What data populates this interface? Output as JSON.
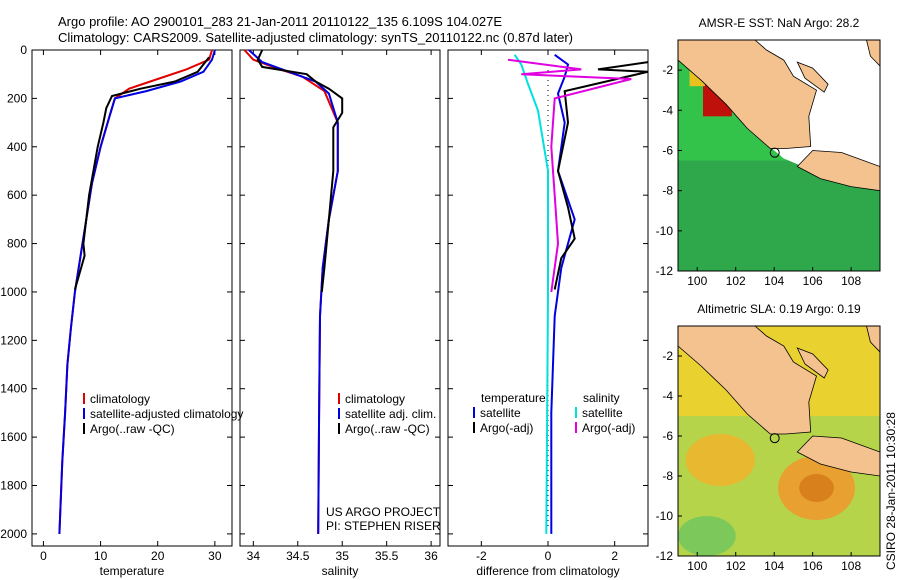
{
  "title_line1": "Argo profile: AO 2900101_283 21-Jan-2011 20110122_135 6.109S 104.027E",
  "title_line2": "Climatology: CARS2009. Satellite-adjusted climatology: synTS_20110122.nc (0.87d later)",
  "credit": "CSIRO 28-Jan-2011 10:30:28",
  "colors": {
    "climatology": "#e00000",
    "satellite": "#0000e0",
    "argo": "#000000",
    "salinity_sat": "#00e0e0",
    "salinity_argo": "#e000e0",
    "sea_green": "#2fbf3a",
    "land": "#f4c28f",
    "sla_bg": "#a8d04a"
  },
  "chart_data": [
    {
      "type": "line",
      "xlabel": "temperature",
      "ylim": [
        0,
        2050
      ],
      "yticks": [
        0,
        200,
        400,
        600,
        800,
        1000,
        1200,
        1400,
        1600,
        1800,
        2000
      ],
      "xlim": [
        -2,
        33
      ],
      "xticks": [
        0,
        10,
        20,
        30
      ],
      "legend": {
        "position": "lower-right",
        "entries": [
          "climatology",
          "satellite-adjusted climatology",
          "Argo(..raw -QC)"
        ]
      },
      "series": [
        {
          "name": "climatology",
          "color": "#e00000",
          "points": [
            [
              29.5,
              0
            ],
            [
              29.0,
              40
            ],
            [
              25,
              80
            ],
            [
              20,
              120
            ],
            [
              15,
              160
            ],
            [
              12.5,
              200
            ],
            [
              11.5,
              280
            ],
            [
              10,
              400
            ],
            [
              8.5,
              550
            ],
            [
              7.5,
              700
            ],
            [
              6.5,
              850
            ],
            [
              5.5,
              1000
            ],
            [
              4.8,
              1150
            ],
            [
              4.2,
              1300
            ],
            [
              3.8,
              1500
            ],
            [
              3.3,
              1700
            ],
            [
              2.8,
              2000
            ]
          ]
        },
        {
          "name": "satellite-adjusted climatology",
          "color": "#0000e0",
          "points": [
            [
              30,
              0
            ],
            [
              29.5,
              40
            ],
            [
              28,
              90
            ],
            [
              24,
              130
            ],
            [
              18,
              170
            ],
            [
              12.5,
              200
            ],
            [
              11.5,
              280
            ],
            [
              10,
              400
            ],
            [
              8.5,
              550
            ],
            [
              7.5,
              700
            ],
            [
              6.5,
              850
            ],
            [
              5.5,
              1000
            ],
            [
              4.8,
              1150
            ],
            [
              4.2,
              1300
            ],
            [
              3.8,
              1500
            ],
            [
              3.3,
              1700
            ],
            [
              2.8,
              2000
            ]
          ]
        },
        {
          "name": "Argo(..raw -QC)",
          "color": "#000000",
          "points": [
            [
              29,
              30
            ],
            [
              28,
              60
            ],
            [
              27,
              90
            ],
            [
              23,
              130
            ],
            [
              17,
              160
            ],
            [
              12,
              190
            ],
            [
              11,
              240
            ],
            [
              10.5,
              300
            ],
            [
              9.5,
              400
            ],
            [
              8,
              600
            ],
            [
              7,
              800
            ],
            [
              7.2,
              850
            ],
            [
              6,
              950
            ],
            [
              5.5,
              990
            ]
          ]
        }
      ]
    },
    {
      "type": "line",
      "xlabel": "salinity",
      "ylim": [
        0,
        2050
      ],
      "xlim": [
        33.85,
        36.1
      ],
      "xticks": [
        34,
        34.5,
        35,
        35.5,
        36
      ],
      "legend": {
        "position": "lower-right",
        "entries": [
          "climatology",
          "satellite adj. clim.",
          "Argo(..raw -QC)"
        ]
      },
      "annotation": [
        "US ARGO PROJECT",
        "PI: STEPHEN RISER"
      ],
      "series": [
        {
          "name": "climatology",
          "color": "#e00000",
          "points": [
            [
              33.9,
              0
            ],
            [
              34.0,
              40
            ],
            [
              34.3,
              80
            ],
            [
              34.55,
              110
            ],
            [
              34.8,
              170
            ],
            [
              34.95,
              300
            ],
            [
              34.95,
              500
            ],
            [
              34.85,
              700
            ],
            [
              34.78,
              900
            ],
            [
              34.75,
              1100
            ],
            [
              34.74,
              1500
            ],
            [
              34.73,
              2000
            ]
          ]
        },
        {
          "name": "satellite adj. clim.",
          "color": "#0000e0",
          "points": [
            [
              33.95,
              0
            ],
            [
              34.1,
              50
            ],
            [
              34.4,
              90
            ],
            [
              34.7,
              130
            ],
            [
              34.85,
              180
            ],
            [
              34.95,
              300
            ],
            [
              34.95,
              500
            ],
            [
              34.85,
              700
            ],
            [
              34.78,
              900
            ],
            [
              34.75,
              1100
            ],
            [
              34.74,
              1500
            ],
            [
              34.73,
              2000
            ]
          ]
        },
        {
          "name": "Argo(..raw -QC)",
          "color": "#000000",
          "points": [
            [
              34.1,
              0
            ],
            [
              34.05,
              40
            ],
            [
              34.1,
              70
            ],
            [
              34.6,
              100
            ],
            [
              34.7,
              130
            ],
            [
              34.85,
              160
            ],
            [
              35.0,
              200
            ],
            [
              35.0,
              260
            ],
            [
              34.9,
              320
            ],
            [
              34.9,
              500
            ],
            [
              34.85,
              700
            ],
            [
              34.8,
              900
            ],
            [
              34.77,
              1000
            ]
          ]
        }
      ]
    },
    {
      "type": "line",
      "xlabel": "difference from climatology",
      "ylim": [
        0,
        2050
      ],
      "xlim": [
        -3,
        3
      ],
      "xticks": [
        -2,
        0,
        2
      ],
      "legend": {
        "position": "lower-center",
        "entries": [
          "temperature",
          "satellite",
          "Argo(-adj)",
          "salinity",
          "satellite",
          "Argo(-adj)"
        ]
      },
      "series": [
        {
          "name": "temperature satellite",
          "color": "#0000e0",
          "points": [
            [
              0.2,
              20
            ],
            [
              0.6,
              60
            ],
            [
              0.5,
              110
            ],
            [
              0.3,
              180
            ],
            [
              0.5,
              300
            ],
            [
              0.3,
              500
            ],
            [
              0.8,
              700
            ],
            [
              0.4,
              900
            ],
            [
              0.2,
              1100
            ],
            [
              0.1,
              1500
            ],
            [
              0.1,
              2000
            ]
          ]
        },
        {
          "name": "temperature Argo(-adj)",
          "color": "#000000",
          "points": [
            [
              3,
              50
            ],
            [
              1.5,
              80
            ],
            [
              3,
              90
            ],
            [
              0.5,
              170
            ],
            [
              0.6,
              300
            ],
            [
              0.3,
              500
            ],
            [
              0.6,
              650
            ],
            [
              0.8,
              780
            ],
            [
              0.4,
              860
            ],
            [
              0.2,
              990
            ]
          ]
        },
        {
          "name": "salinity satellite",
          "color": "#00e0e0",
          "points": [
            [
              -1.0,
              20
            ],
            [
              -0.8,
              60
            ],
            [
              -0.6,
              140
            ],
            [
              -0.3,
              250
            ],
            [
              0,
              500
            ],
            [
              0,
              1000
            ],
            [
              -0.05,
              2000
            ]
          ]
        },
        {
          "name": "salinity Argo(-adj)",
          "color": "#e000e0",
          "points": [
            [
              -1.2,
              40
            ],
            [
              1.0,
              80
            ],
            [
              -0.8,
              100
            ],
            [
              2.5,
              120
            ],
            [
              0.2,
              200
            ],
            [
              0.1,
              400
            ],
            [
              0.2,
              600
            ],
            [
              0.3,
              800
            ],
            [
              0.1,
              1000
            ]
          ]
        }
      ]
    },
    {
      "type": "heatmap",
      "title": "AMSR-E SST: NaN Argo: 28.2",
      "xlim": [
        99,
        109.5
      ],
      "ylim": [
        -12,
        -0.5
      ],
      "xticks": [
        100,
        102,
        104,
        106,
        108
      ],
      "yticks": [
        -2,
        -4,
        -6,
        -8,
        -10,
        -12
      ],
      "marker": {
        "lon": 104.027,
        "lat": -6.109
      }
    },
    {
      "type": "heatmap",
      "title": "Altimetric SLA: 0.19 Argo: 0.19",
      "xlim": [
        99,
        109.5
      ],
      "ylim": [
        -12,
        -0.5
      ],
      "xticks": [
        100,
        102,
        104,
        106,
        108
      ],
      "yticks": [
        -2,
        -4,
        -6,
        -8,
        -10,
        -12
      ],
      "marker": {
        "lon": 104.027,
        "lat": -6.109
      }
    }
  ]
}
